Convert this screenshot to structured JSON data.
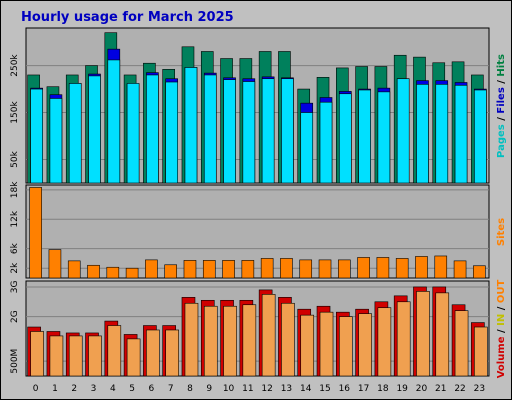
{
  "title": "Hourly usage for March 2025",
  "colors": {
    "hits": "#00805c",
    "files": "#0000e0",
    "pages": "#00e0ff",
    "sites": "#ff8000",
    "volume": "#d00000",
    "volume_inner": "#f0a050",
    "bg": "#c0c0c0",
    "panel": "#b0b0b0"
  },
  "legend_top": [
    {
      "text": "Pages",
      "color": "#00c0c0"
    },
    {
      "text": " / ",
      "color": "#000000"
    },
    {
      "text": "Files",
      "color": "#0000c0"
    },
    {
      "text": " / ",
      "color": "#000000"
    },
    {
      "text": "Hits",
      "color": "#008040"
    }
  ],
  "legend_mid": [
    {
      "text": "Sites",
      "color": "#ff8000"
    }
  ],
  "legend_bot": [
    {
      "text": "Volume",
      "color": "#d00000"
    },
    {
      "text": " / ",
      "color": "#000000"
    },
    {
      "text": "IN",
      "color": "#c0c000"
    },
    {
      "text": " / ",
      "color": "#000000"
    },
    {
      "text": "OUT",
      "color": "#ff8000"
    }
  ],
  "chart_data": [
    {
      "type": "bar",
      "name": "hits-files-pages",
      "categories": [
        "0",
        "1",
        "2",
        "3",
        "4",
        "5",
        "6",
        "7",
        "8",
        "9",
        "10",
        "11",
        "12",
        "13",
        "14",
        "15",
        "16",
        "17",
        "18",
        "19",
        "20",
        "21",
        "22",
        "23"
      ],
      "yticks": [
        "50k",
        "150k",
        "250k"
      ],
      "ytick_values": [
        50000,
        150000,
        250000
      ],
      "ylim": [
        0,
        330000
      ],
      "series": [
        {
          "name": "Hits",
          "values": [
            230000,
            205000,
            230000,
            250000,
            320000,
            230000,
            255000,
            242000,
            290000,
            280000,
            265000,
            265000,
            280000,
            280000,
            200000,
            225000,
            245000,
            248000,
            248000,
            272000,
            268000,
            256000,
            258000,
            230000
          ]
        },
        {
          "name": "Files",
          "values": [
            202000,
            188000,
            212000,
            232000,
            285000,
            210000,
            235000,
            222000,
            246000,
            234000,
            224000,
            222000,
            226000,
            224000,
            170000,
            182000,
            195000,
            200000,
            202000,
            222000,
            218000,
            218000,
            214000,
            200000
          ]
        },
        {
          "name": "Pages",
          "values": [
            200000,
            180000,
            212000,
            228000,
            262000,
            212000,
            230000,
            215000,
            246000,
            230000,
            220000,
            216000,
            222000,
            222000,
            150000,
            172000,
            190000,
            198000,
            194000,
            222000,
            210000,
            210000,
            208000,
            198000
          ]
        }
      ]
    },
    {
      "type": "bar",
      "name": "sites",
      "categories": [
        "0",
        "1",
        "2",
        "3",
        "4",
        "5",
        "6",
        "7",
        "8",
        "9",
        "10",
        "11",
        "12",
        "13",
        "14",
        "15",
        "16",
        "17",
        "18",
        "19",
        "20",
        "21",
        "22",
        "23"
      ],
      "yticks": [
        "2k",
        "6k",
        "12k",
        "18k"
      ],
      "ytick_values": [
        2000,
        6000,
        12000,
        18000
      ],
      "ylim": [
        0,
        19000
      ],
      "series": [
        {
          "name": "Sites",
          "values": [
            18500,
            5800,
            3500,
            2600,
            2200,
            2000,
            3700,
            2700,
            3600,
            3600,
            3600,
            3600,
            4000,
            4000,
            3700,
            3700,
            3700,
            4200,
            4200,
            4000,
            4400,
            4500,
            3500,
            2500
          ]
        }
      ]
    },
    {
      "type": "bar",
      "name": "volume",
      "categories": [
        "0",
        "1",
        "2",
        "3",
        "4",
        "5",
        "6",
        "7",
        "8",
        "9",
        "10",
        "11",
        "12",
        "13",
        "14",
        "15",
        "16",
        "17",
        "18",
        "19",
        "20",
        "21",
        "22",
        "23"
      ],
      "yticks": [
        "500M",
        "2G",
        "3G"
      ],
      "ytick_values": [
        500,
        2000,
        3000
      ],
      "ylim": [
        0,
        3200
      ],
      "series": [
        {
          "name": "Volume",
          "values": [
            1650,
            1500,
            1450,
            1450,
            1850,
            1400,
            1700,
            1700,
            2650,
            2550,
            2550,
            2550,
            2900,
            2650,
            2250,
            2350,
            2150,
            2250,
            2500,
            2700,
            3000,
            3000,
            2400,
            1800
          ]
        },
        {
          "name": "OUT",
          "values": [
            1500,
            1350,
            1350,
            1350,
            1700,
            1250,
            1550,
            1550,
            2450,
            2350,
            2350,
            2400,
            2750,
            2450,
            2050,
            2150,
            2000,
            2100,
            2300,
            2500,
            2850,
            2800,
            2200,
            1650
          ]
        }
      ]
    }
  ]
}
